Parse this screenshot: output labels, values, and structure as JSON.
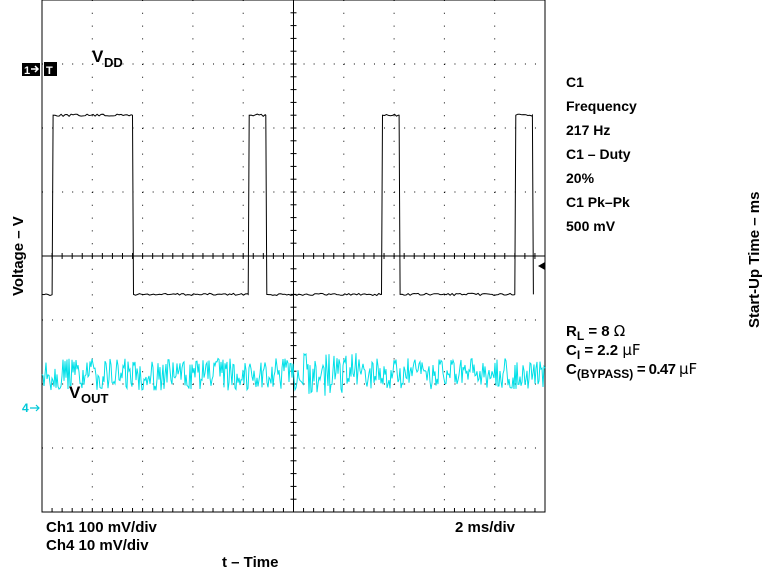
{
  "chart_data": {
    "type": "line",
    "series": [
      {
        "name": "VDD",
        "color": "#000000",
        "x": [
          0,
          0.2,
          0.22,
          1.8,
          1.82,
          4.1,
          4.12,
          4.45,
          4.47,
          6.75,
          6.77,
          7.1,
          7.12,
          9.4,
          9.42,
          9.75,
          9.77
        ],
        "y": [
          -0.6,
          -0.6,
          2.2,
          2.2,
          -0.6,
          -0.6,
          2.2,
          2.2,
          -0.6,
          -0.6,
          2.2,
          2.2,
          -0.6,
          -0.6,
          2.2,
          2.2,
          -0.6
        ]
      },
      {
        "name": "VOUT",
        "color": "#00e0e8",
        "level": -1.85,
        "noise_pk_pk": 0.5
      }
    ],
    "grid": true,
    "xdiv": 10,
    "ydiv": 8
  },
  "labels": {
    "vdd_main": "V",
    "vdd_sub": "DD",
    "vout_main": "V",
    "vout_sub": "OUT",
    "ch1_marker": "1",
    "trig_marker": "T",
    "ch4_marker": "4"
  },
  "measurements": {
    "l1": "C1",
    "l2": "Frequency",
    "l3": "217 Hz",
    "l4": "C1 – Duty",
    "l5": "20%",
    "l6": "C1 Pk–Pk",
    "l7": "500 mV"
  },
  "params": {
    "rl_main": "R",
    "rl_sub": "L",
    "rl_val": " = 8 ",
    "rl_unit": "Ω",
    "ci_main": "C",
    "ci_sub": "I",
    "ci_val": " = 2.2 ",
    "ci_unit": "μF",
    "cb_main": "C",
    "cb_sub": "(BYPASS)",
    "cb_val": " = 0.47 ",
    "cb_unit": "μF"
  },
  "footer": {
    "ch1": "Ch1 100 mV/div",
    "ch4": "Ch4 10 mV/div",
    "timebase": "2 ms/div",
    "xaxis": "t – Time"
  },
  "yaxis": "Voltage – V",
  "right_axis": "Start-Up Time – ms"
}
